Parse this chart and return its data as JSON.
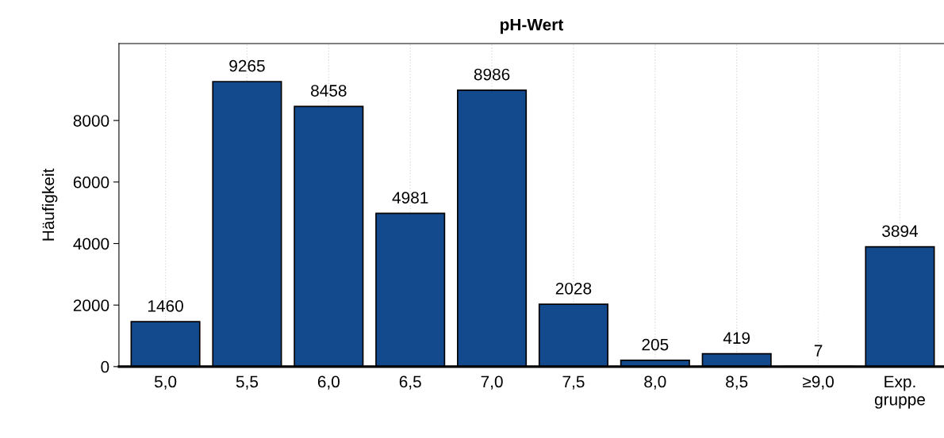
{
  "chart_data": {
    "type": "bar",
    "title": "pH-Wert",
    "ylabel": "Häufigkeit",
    "categories": [
      "5,0",
      "5,5",
      "6,0",
      "6,5",
      "7,0",
      "7,5",
      "8,0",
      "8,5",
      "≥9,0",
      "Exp.\ngruppe"
    ],
    "values": [
      1460,
      9265,
      8458,
      4981,
      8986,
      2028,
      205,
      419,
      7,
      3894
    ],
    "color": "#134a8e",
    "ylim": [
      0,
      10500
    ],
    "yticks": [
      0,
      2000,
      4000,
      6000,
      8000
    ],
    "grid": "x",
    "data_labels": true
  }
}
